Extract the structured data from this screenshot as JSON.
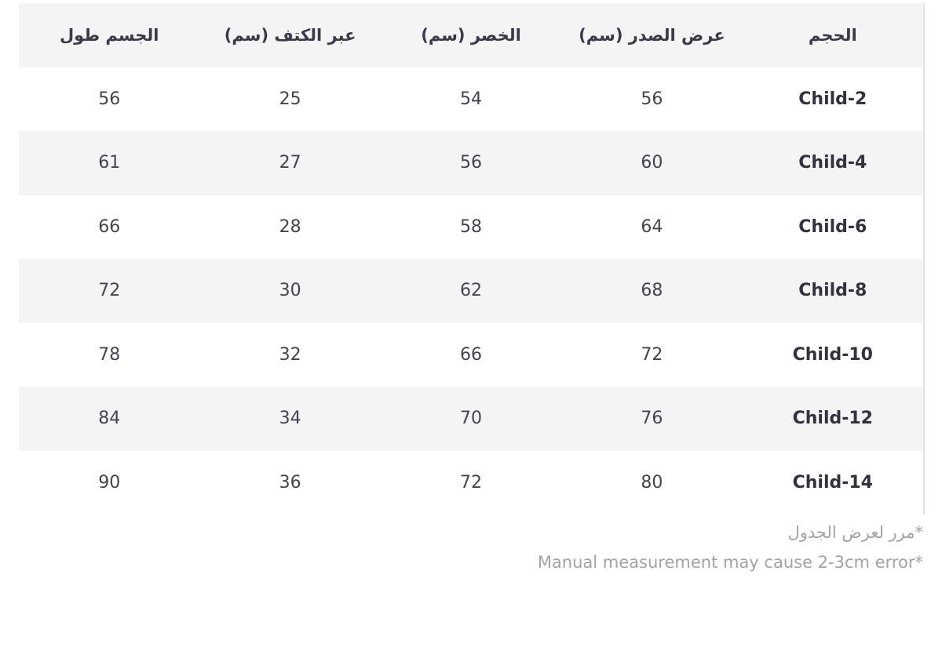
{
  "size_table": {
    "headers": [
      "الحجم",
      "عرض الصدر (سم)",
      "الخصر (سم)",
      "عبر الكتف (سم)",
      "الجسم طول"
    ],
    "rows": [
      [
        "Child-2",
        "56",
        "54",
        "25",
        "56"
      ],
      [
        "Child-4",
        "60",
        "56",
        "27",
        "61"
      ],
      [
        "Child-6",
        "64",
        "58",
        "28",
        "66"
      ],
      [
        "Child-8",
        "68",
        "62",
        "30",
        "72"
      ],
      [
        "Child-10",
        "72",
        "66",
        "32",
        "78"
      ],
      [
        "Child-12",
        "76",
        "70",
        "34",
        "84"
      ],
      [
        "Child-14",
        "80",
        "72",
        "36",
        "90"
      ]
    ]
  },
  "notes": {
    "scroll_hint": "*مرر لعرض الجدول",
    "measurement_note": "Manual measurement may cause 2-3cm error*"
  },
  "colors": {
    "header_bg": "#f4f4f4",
    "stripe_bg": "#f4f4f4",
    "text": "#3a3a48",
    "note_text": "#a3a3a3"
  }
}
